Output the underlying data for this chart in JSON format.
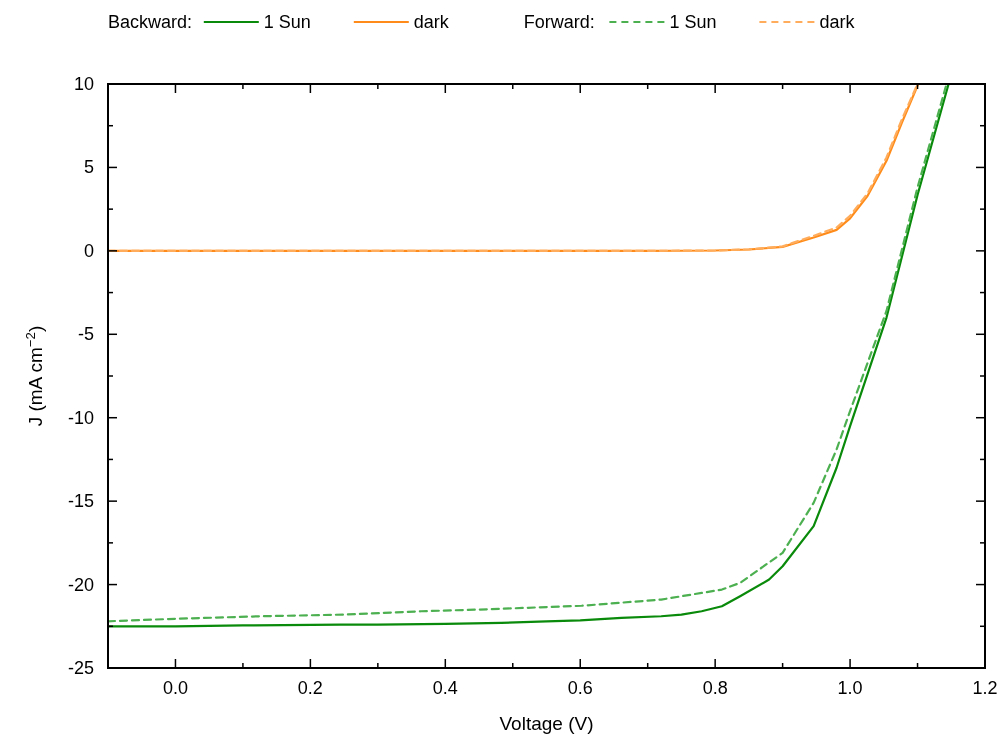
{
  "chart_data": {
    "type": "line",
    "xlabel": "Voltage (V)",
    "ylabel": "J (mA cm$^{−2}$)",
    "xlim": [
      -0.1,
      1.2
    ],
    "ylim": [
      -25,
      10
    ],
    "xticks": [
      {
        "value": 0,
        "label": "0.0"
      },
      {
        "value": 0.1,
        "label": null
      },
      {
        "value": 0.2,
        "label": "0.2"
      },
      {
        "value": 0.3,
        "label": null
      },
      {
        "value": 0.4,
        "label": "0.4"
      },
      {
        "value": 0.5,
        "label": null
      },
      {
        "value": 0.6,
        "label": "0.6"
      },
      {
        "value": 0.7,
        "label": null
      },
      {
        "value": 0.8,
        "label": "0.8"
      },
      {
        "value": 0.9,
        "label": null
      },
      {
        "value": 1,
        "label": "1.0"
      },
      {
        "value": 1.1,
        "label": null
      },
      {
        "value": 1.2,
        "label": "1.2"
      }
    ],
    "yticks": [
      -25,
      {
        "value": -22.5,
        "label": null
      },
      -20,
      {
        "value": -17.5,
        "label": null
      },
      -15,
      {
        "value": -12.5,
        "label": null
      },
      -10,
      {
        "value": -7.5,
        "label": null
      },
      -5,
      {
        "value": -2.5,
        "label": null
      },
      0,
      {
        "value": 2.5,
        "label": null
      },
      5,
      {
        "value": 7.5,
        "label": null
      },
      10
    ],
    "legend": "top",
    "marker": "none",
    "annotations": [
      "Backward:",
      "Forward:"
    ],
    "series": [
      {
        "name": "1 Sun",
        "color": "#0a8a0a",
        "line_style": "solid",
        "x": [
          -0.1,
          0.0,
          0.1,
          0.245,
          0.3,
          0.4,
          0.483,
          0.55,
          0.6,
          0.661,
          0.72,
          0.75,
          0.78,
          0.81,
          0.837,
          0.88,
          0.9,
          0.946,
          0.98,
          1.0,
          1.054,
          1.1,
          1.146
        ],
        "values": [
          -22.5,
          -22.5,
          -22.45,
          -22.4,
          -22.4,
          -22.35,
          -22.3,
          -22.2,
          -22.15,
          -22.0,
          -21.9,
          -21.8,
          -21.6,
          -21.3,
          -20.7,
          -19.7,
          -18.9,
          -16.5,
          -13.0,
          -10.5,
          -4.0,
          3.35,
          10
        ]
      },
      {
        "name": "dark",
        "color": "#ff8c1a",
        "line_style": "solid",
        "x": [
          -0.1,
          0.2,
          0.5,
          0.7,
          0.8,
          0.85,
          0.9,
          0.946,
          0.98,
          1.0,
          1.026,
          1.054,
          1.077,
          1.101
        ],
        "values": [
          0,
          0,
          0,
          0,
          0.02,
          0.08,
          0.24,
          0.8,
          1.26,
          1.95,
          3.3,
          5.4,
          7.7,
          10
        ]
      },
      {
        "name": "1 Sun",
        "color": "#4caf50",
        "line_style": "dashed",
        "x": [
          -0.1,
          0.0,
          0.126,
          0.25,
          0.364,
          0.45,
          0.602,
          0.72,
          0.78,
          0.81,
          0.837,
          0.9,
          0.946,
          0.98,
          1.0,
          1.054,
          1.1,
          1.143
        ],
        "values": [
          -22.2,
          -22.05,
          -21.9,
          -21.8,
          -21.6,
          -21.5,
          -21.27,
          -20.9,
          -20.5,
          -20.3,
          -19.9,
          -18.1,
          -15.1,
          -11.9,
          -9.6,
          -3.6,
          3.8,
          10
        ]
      },
      {
        "name": "dark",
        "color": "#ffad5c",
        "line_style": "dashed",
        "x": [
          -0.1,
          0.2,
          0.5,
          0.7,
          0.8,
          0.85,
          0.9,
          0.946,
          0.98,
          1.0,
          1.026,
          1.054,
          1.077,
          1.1
        ],
        "values": [
          0,
          0,
          0,
          0,
          0.02,
          0.09,
          0.27,
          0.9,
          1.4,
          2.1,
          3.45,
          5.6,
          7.9,
          10
        ]
      }
    ]
  }
}
